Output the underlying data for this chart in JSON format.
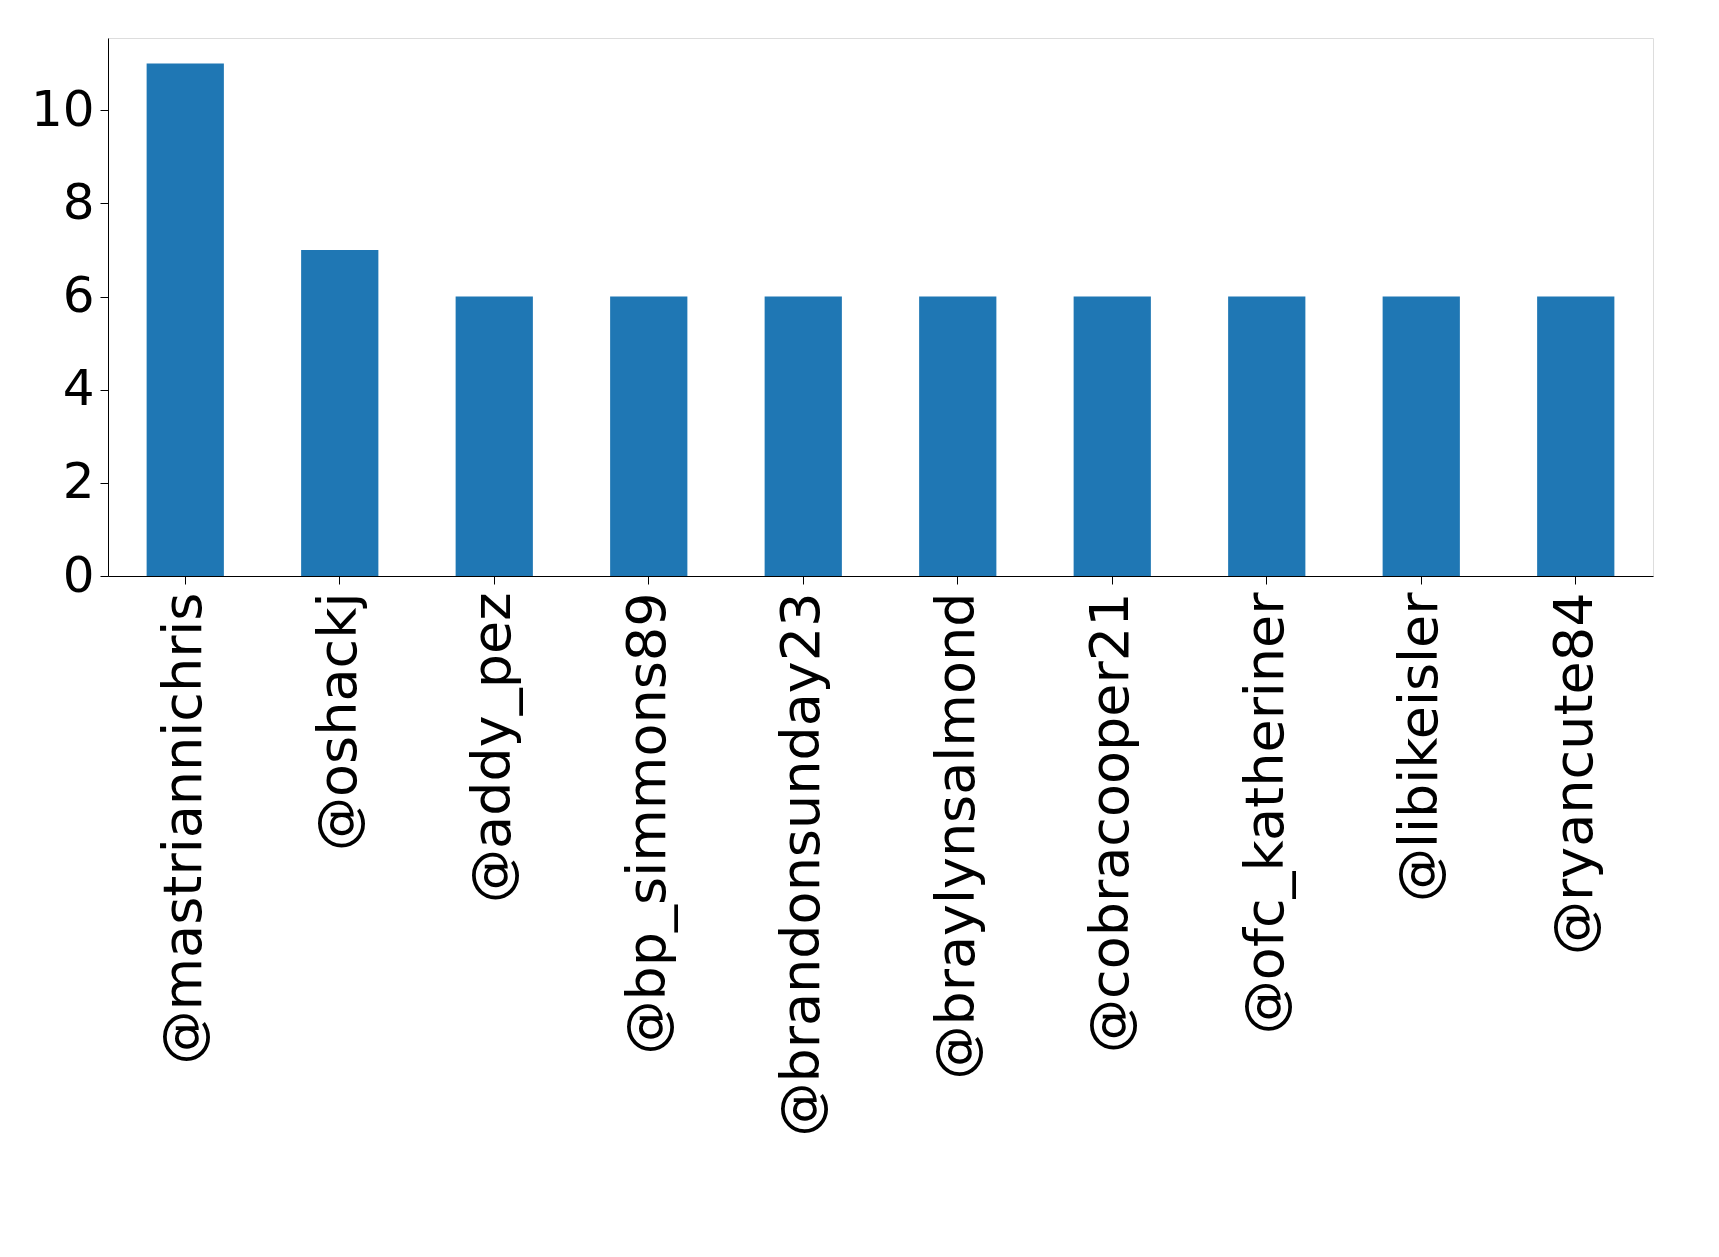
{
  "chart_data": {
    "type": "bar",
    "categories": [
      "@mastriannichris",
      "@oshackj",
      "@addy_pez",
      "@bp_simmons89",
      "@brandonsunday23",
      "@braylynsalmond",
      "@cobracooper21",
      "@ofc_katheriner",
      "@libikeisler",
      "@ryancute84"
    ],
    "values": [
      11,
      7,
      6,
      6,
      6,
      6,
      6,
      6,
      6,
      6
    ],
    "color": "#1f77b4",
    "ylim": [
      0,
      11.55
    ],
    "yticks": [
      0,
      2,
      4,
      6,
      8,
      10
    ],
    "grid": false
  }
}
